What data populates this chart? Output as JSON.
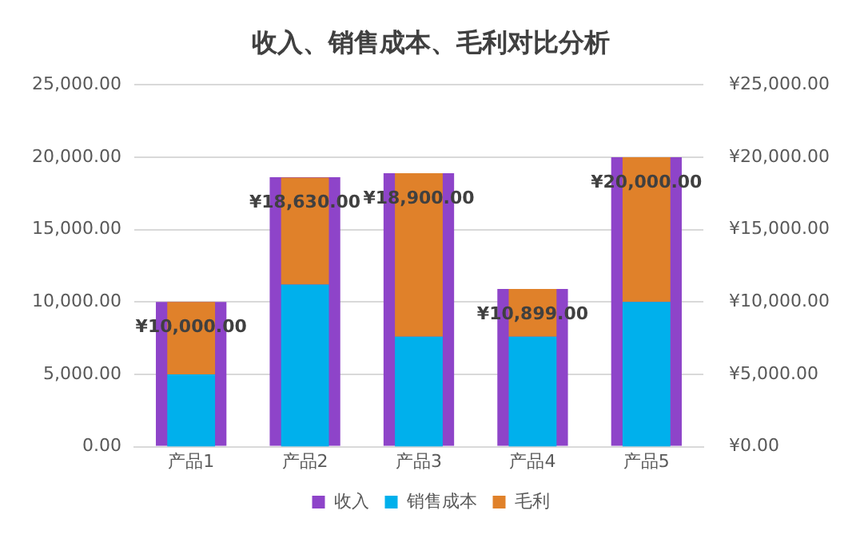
{
  "chart_data": {
    "type": "bar",
    "title": "收入、销售成本、毛利对比分析",
    "categories": [
      "产品1",
      "产品2",
      "产品3",
      "产品4",
      "产品5"
    ],
    "series": [
      {
        "name": "收入",
        "color": "#8e44c9",
        "values": [
          10000,
          18630,
          18900,
          10899,
          20000
        ],
        "axis": "y",
        "value_labels": [
          "¥10,000.00",
          "¥18,630.00",
          "¥18,900.00",
          "¥10,899.00",
          "¥20,000.00"
        ]
      },
      {
        "name": "销售成本",
        "color": "#00b0ec",
        "values": [
          5000,
          11200,
          7600,
          7600,
          10000
        ],
        "axis": "y2"
      },
      {
        "name": "毛利",
        "color": "#e0812a",
        "values": [
          5000,
          7400,
          11300,
          3300,
          10000
        ],
        "axis": "y2"
      }
    ],
    "stacked": true,
    "ylim": [
      0,
      25000
    ],
    "yticks": [
      {
        "value": 0,
        "label": "0.00"
      },
      {
        "value": 5000,
        "label": "5,000.00"
      },
      {
        "value": 10000,
        "label": "10,000.00"
      },
      {
        "value": 15000,
        "label": "15,000.00"
      },
      {
        "value": 20000,
        "label": "20,000.00"
      },
      {
        "value": 25000,
        "label": "25,000.00"
      }
    ],
    "y2lim": [
      0,
      25000
    ],
    "y2ticks": [
      {
        "value": 0,
        "label": "¥0.00"
      },
      {
        "value": 5000,
        "label": "¥5,000.00"
      },
      {
        "value": 10000,
        "label": "¥10,000.00"
      },
      {
        "value": 15000,
        "label": "¥15,000.00"
      },
      {
        "value": 20000,
        "label": "¥20,000.00"
      },
      {
        "value": 25000,
        "label": "¥25,000.00"
      }
    ],
    "grid": "y",
    "legend": "bottom"
  }
}
